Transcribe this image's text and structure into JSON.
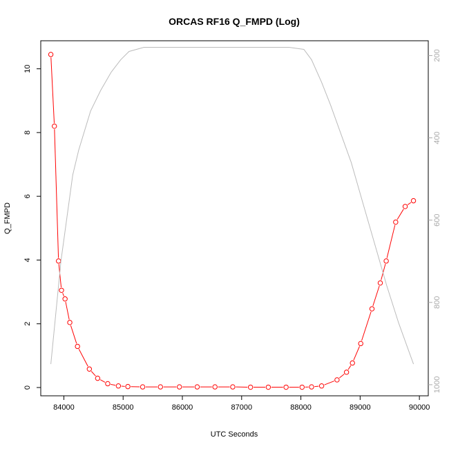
{
  "chart_data": {
    "type": "line",
    "title": "ORCAS RF16 Q_FMPD (Log)",
    "xlabel": "UTC Seconds",
    "ylabel": "Q_FMPD",
    "xlim": [
      83610,
      90150
    ],
    "ylim": [
      -0.26,
      10.88
    ],
    "y2lim": [
      1027,
      164
    ],
    "y2_reversed": true,
    "xticks": [
      84000,
      85000,
      86000,
      87000,
      88000,
      89000,
      90000
    ],
    "yticks": [
      0,
      2,
      4,
      6,
      8,
      10
    ],
    "y2ticks": [
      200,
      400,
      600,
      800,
      1000
    ],
    "grid": false,
    "series": [
      {
        "axis": "left",
        "color": "#ff0000",
        "marker": "open-circle",
        "x": [
          83780,
          83840,
          83910,
          83960,
          84020,
          84100,
          84230,
          84430,
          84570,
          84740,
          84920,
          85080,
          85330,
          85630,
          85950,
          86250,
          86550,
          86850,
          87150,
          87450,
          87750,
          88020,
          88180,
          88350,
          88610,
          88770,
          88870,
          89010,
          89200,
          89340,
          89440,
          89600,
          89760,
          89900
        ],
        "values": [
          10.45,
          8.2,
          3.97,
          3.05,
          2.78,
          2.04,
          1.29,
          0.58,
          0.29,
          0.12,
          0.05,
          0.03,
          0.02,
          0.02,
          0.02,
          0.02,
          0.02,
          0.02,
          0.01,
          0.01,
          0.01,
          0.01,
          0.02,
          0.05,
          0.24,
          0.48,
          0.77,
          1.38,
          2.47,
          3.28,
          3.97,
          5.19,
          5.68,
          5.86
        ]
      },
      {
        "axis": "right",
        "color": "#bbbbbb",
        "marker": "none",
        "x": [
          83780,
          83950,
          84150,
          84250,
          84450,
          84620,
          84800,
          84960,
          85100,
          85350,
          85600,
          86000,
          86500,
          87000,
          87500,
          87800,
          88050,
          88180,
          88350,
          88500,
          88650,
          88850,
          89050,
          89250,
          89450,
          89650,
          89900
        ],
        "values": [
          950,
          700,
          490,
          430,
          335,
          285,
          240,
          210,
          190,
          180,
          180,
          180,
          180,
          180,
          180,
          180,
          185,
          210,
          265,
          320,
          380,
          460,
          560,
          660,
          760,
          850,
          950
        ]
      }
    ]
  }
}
